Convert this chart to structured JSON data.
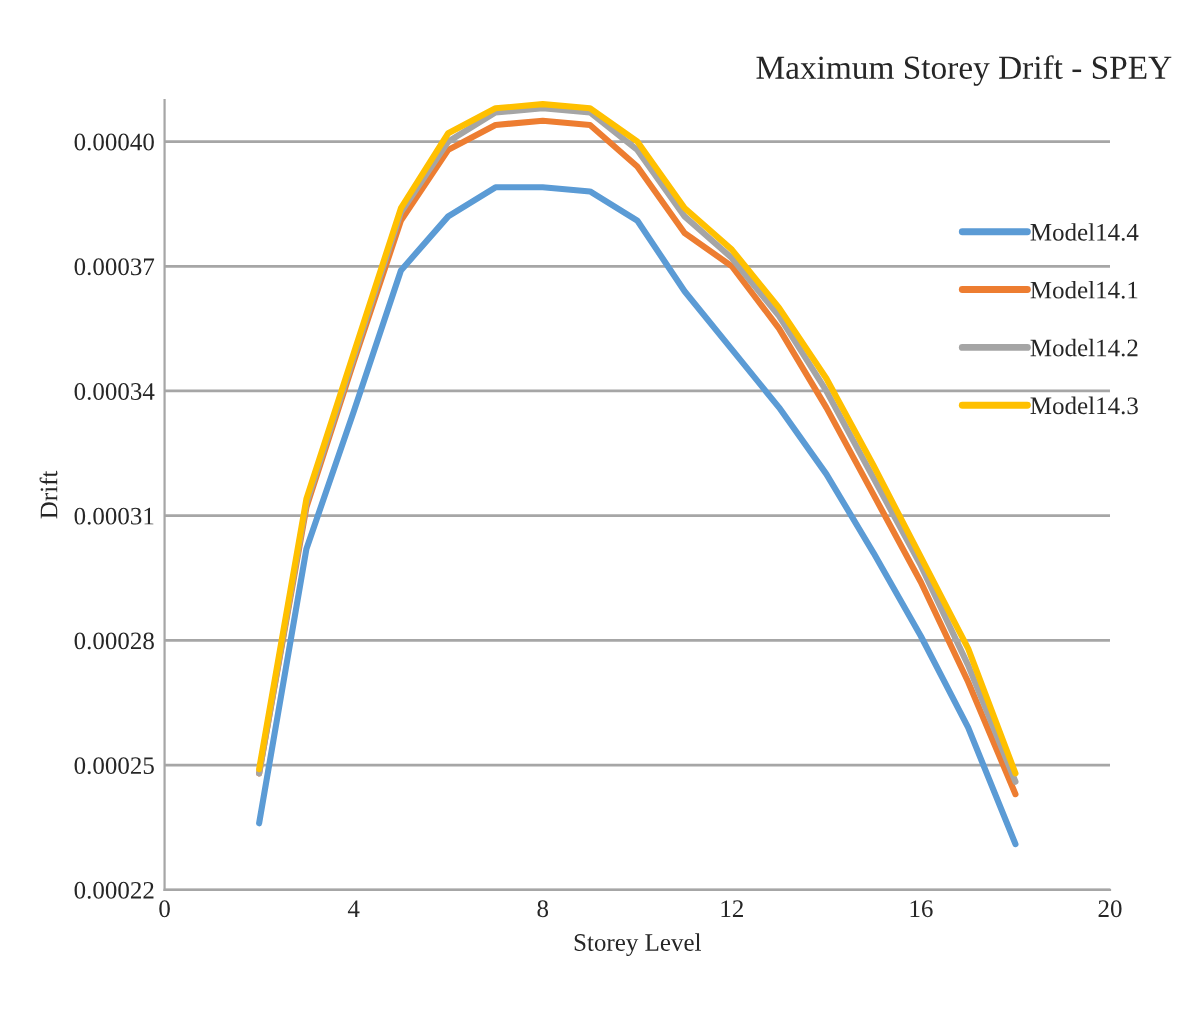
{
  "chart_data": {
    "type": "line",
    "title": "Maximum Storey Drift - SPEY",
    "xlabel": "Storey Level",
    "ylabel": "Drift",
    "x": [
      2,
      3,
      4,
      5,
      6,
      7,
      8,
      9,
      10,
      11,
      12,
      13,
      14,
      15,
      16,
      17,
      18
    ],
    "series": [
      {
        "name": "Model14.4",
        "color": "#5b9bd5",
        "values": [
          0.000236,
          0.000302,
          0.000335,
          0.000369,
          0.000382,
          0.000389,
          0.000389,
          0.000388,
          0.000381,
          0.000364,
          0.00035,
          0.000336,
          0.00032,
          0.000301,
          0.000281,
          0.000259,
          0.000231
        ]
      },
      {
        "name": "Model14.1",
        "color": "#ed7d31",
        "values": [
          0.000248,
          0.000312,
          0.000347,
          0.000381,
          0.000398,
          0.000404,
          0.000405,
          0.000404,
          0.000394,
          0.000378,
          0.00037,
          0.000355,
          0.000336,
          0.000315,
          0.000294,
          0.00027,
          0.000243
        ]
      },
      {
        "name": "Model14.2",
        "color": "#a5a5a5",
        "values": [
          0.000248,
          0.000313,
          0.000348,
          0.000383,
          0.0004,
          0.000407,
          0.000408,
          0.000407,
          0.000398,
          0.000382,
          0.000372,
          0.000358,
          0.00034,
          0.000319,
          0.000298,
          0.000274,
          0.000246
        ]
      },
      {
        "name": "Model14.3",
        "color": "#ffc000",
        "values": [
          0.000249,
          0.000314,
          0.000349,
          0.000384,
          0.000402,
          0.000408,
          0.000409,
          0.000408,
          0.0004,
          0.000384,
          0.000374,
          0.00036,
          0.000343,
          0.000322,
          0.0003,
          0.000278,
          0.000248
        ]
      }
    ],
    "xlim": [
      0,
      20
    ],
    "xticks": [
      0,
      4,
      8,
      12,
      16,
      20
    ],
    "ylim": [
      0.00022,
      0.00041
    ],
    "yticks": [
      0.00022,
      0.00025,
      0.00028,
      0.00031,
      0.00034,
      0.00037,
      {
        "value": 0.0004,
        "label": "0.00040"
      }
    ],
    "grid": "y",
    "legend": "right",
    "marker": "none",
    "line_style": "solid"
  }
}
